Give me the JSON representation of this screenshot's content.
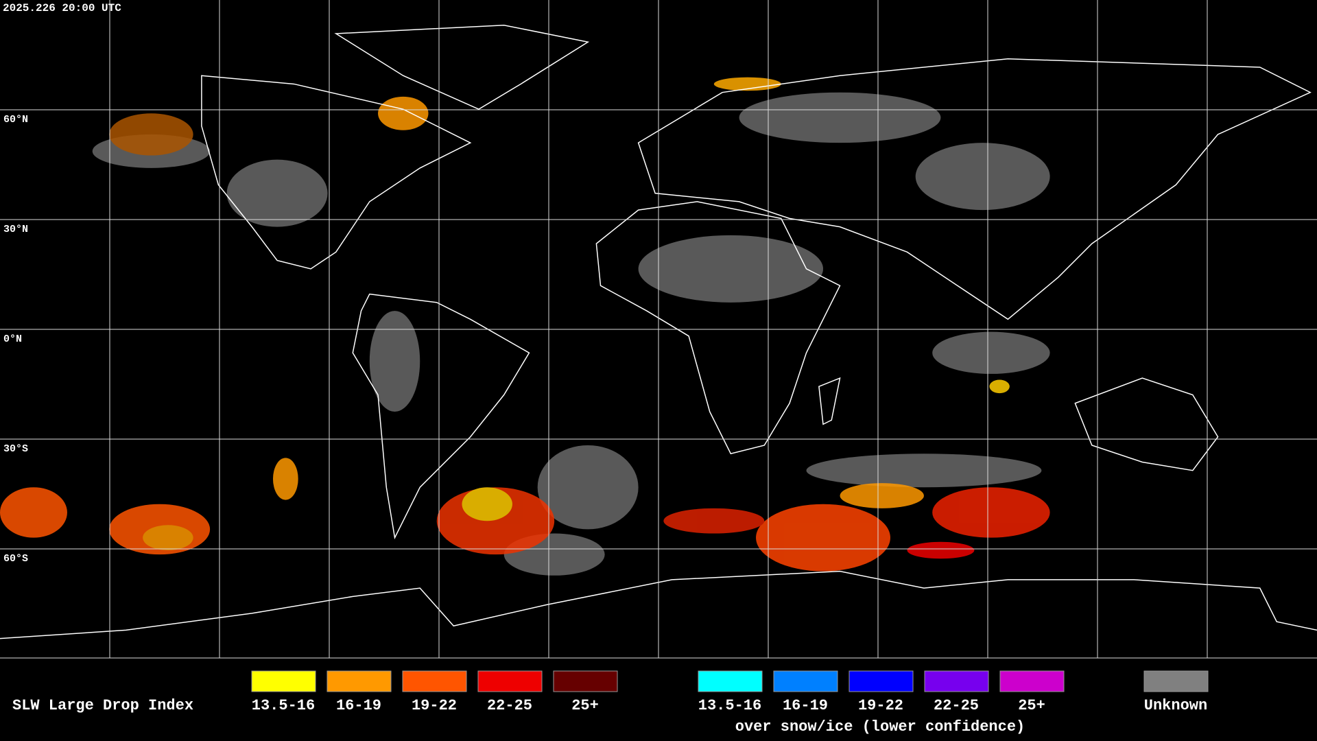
{
  "header": {
    "timestamp": "2025.226 20:00 UTC"
  },
  "map": {
    "latitude_labels": [
      "60°N",
      "30°N",
      "0°N",
      "30°S",
      "60°S"
    ]
  },
  "legend": {
    "title": "SLW Large Drop Index",
    "groups": [
      {
        "items": [
          {
            "label": "13.5-16",
            "color": "#ffff00"
          },
          {
            "label": "16-19",
            "color": "#ff9900"
          },
          {
            "label": "19-22",
            "color": "#ff5500"
          },
          {
            "label": "22-25",
            "color": "#ee0000"
          },
          {
            "label": "25+",
            "color": "#660000"
          }
        ]
      },
      {
        "items": [
          {
            "label": "13.5-16",
            "color": "#00ffff"
          },
          {
            "label": "16-19",
            "color": "#0080ff"
          },
          {
            "label": "19-22",
            "color": "#0000ff"
          },
          {
            "label": "22-25",
            "color": "#7700ee"
          },
          {
            "label": "25+",
            "color": "#cc00cc"
          }
        ],
        "caption": "over snow/ice (lower confidence)"
      }
    ],
    "unknown": {
      "label": "Unknown",
      "color": "#808080"
    }
  }
}
